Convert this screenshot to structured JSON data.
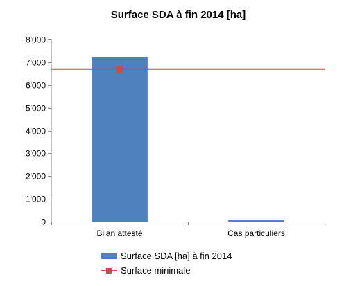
{
  "chart_data": {
    "type": "bar",
    "title": "Surface SDA à fin 2014 [ha]",
    "categories": [
      "Bilan attesté",
      "Cas particuliers"
    ],
    "series": [
      {
        "name": "Surface SDA [ha] à fin 2014",
        "type": "bar",
        "values": [
          7230,
          60
        ],
        "color": "#4f81bd"
      },
      {
        "name": "Surface minimale",
        "type": "line",
        "value": 6700,
        "color": "#c0504d",
        "marker_category": "Bilan attesté"
      }
    ],
    "ylim": [
      0,
      8000
    ],
    "yticks": [
      0,
      1000,
      2000,
      3000,
      4000,
      5000,
      6000,
      7000,
      8000
    ],
    "ytick_labels": [
      "0",
      "1'000",
      "2'000",
      "3'000",
      "4'000",
      "5'000",
      "6'000",
      "7'000",
      "8'000"
    ],
    "grid": false,
    "legend_position": "bottom",
    "xlabel": "",
    "ylabel": ""
  }
}
